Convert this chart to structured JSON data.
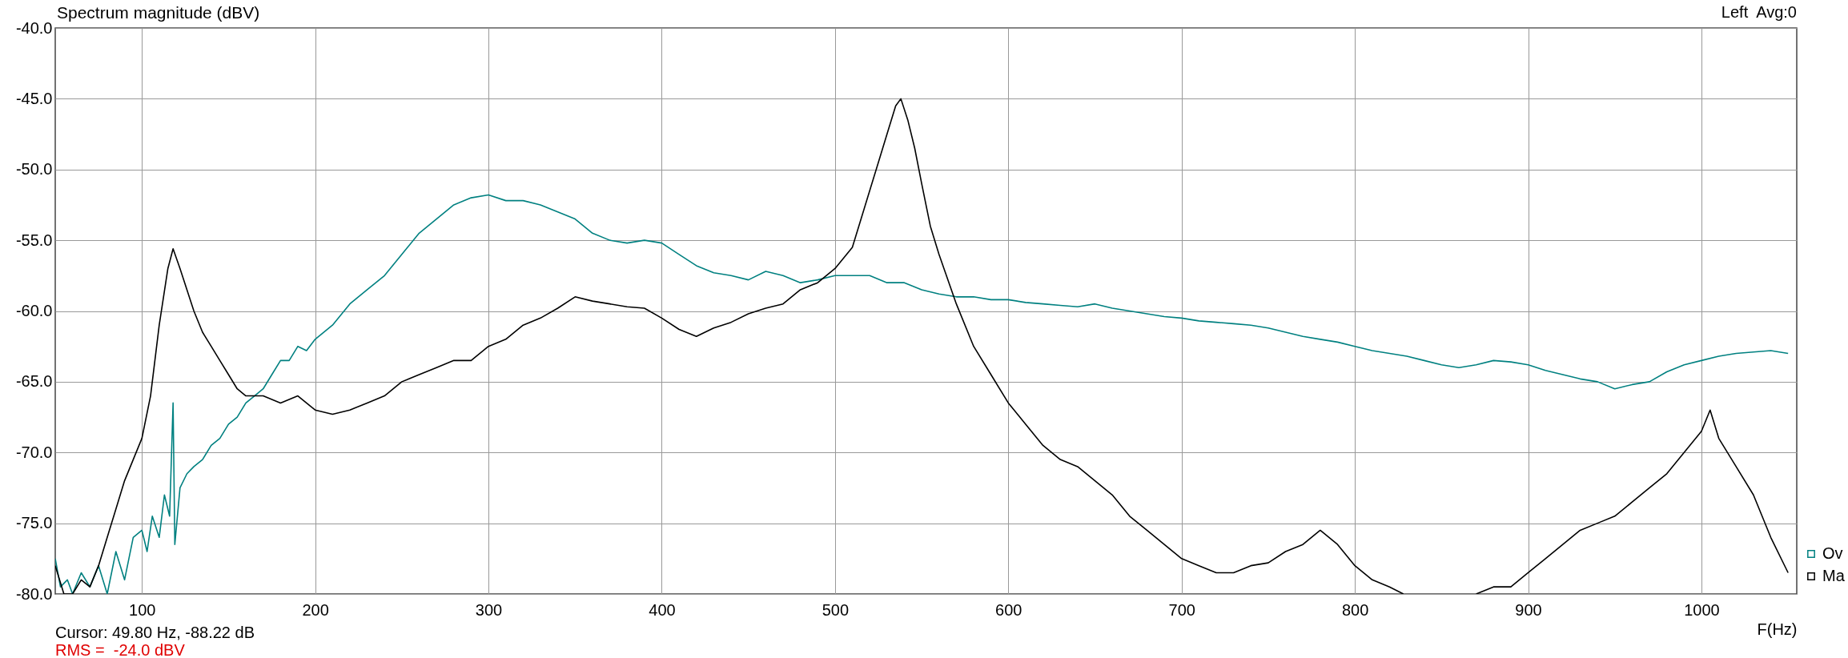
{
  "chart_data": {
    "type": "line",
    "title": "Spectrum magnitude (dBV)",
    "xlabel": "F(Hz)",
    "annotations": [
      "Left  Avg:0",
      "Cursor: 49.80 Hz, -88.22 dB",
      "RMS =  -24.0 dBV"
    ],
    "xlim": [
      50,
      1055
    ],
    "xticks": [
      100,
      200,
      300,
      400,
      500,
      600,
      700,
      800,
      900,
      1000
    ],
    "ylim": [
      -80,
      -40
    ],
    "yticks": [
      {
        "value": -80,
        "label": "-80.0"
      },
      {
        "value": -75,
        "label": "-75.0"
      },
      {
        "value": -70,
        "label": "-70.0"
      },
      {
        "value": -65,
        "label": "-65.0"
      },
      {
        "value": -60,
        "label": "-60.0"
      },
      {
        "value": -55,
        "label": "-55.0"
      },
      {
        "value": -50,
        "label": "-50.0"
      },
      {
        "value": -45,
        "label": "-45.0"
      },
      {
        "value": -40,
        "label": "-40.0"
      }
    ],
    "grid": true,
    "legend": "bottom right",
    "line_style": "solid",
    "marker": "none",
    "series": [
      {
        "name": "Ov",
        "color": "#008080",
        "x": [
          50,
          53,
          57,
          60,
          65,
          70,
          75,
          80,
          85,
          90,
          95,
          100,
          103,
          106,
          110,
          113,
          116,
          118,
          119,
          122,
          126,
          130,
          135,
          140,
          145,
          150,
          155,
          160,
          165,
          170,
          175,
          180,
          185,
          190,
          195,
          200,
          210,
          220,
          230,
          240,
          250,
          260,
          270,
          280,
          290,
          300,
          310,
          320,
          330,
          340,
          350,
          360,
          370,
          380,
          390,
          400,
          410,
          420,
          430,
          440,
          450,
          460,
          470,
          480,
          490,
          500,
          510,
          520,
          530,
          540,
          550,
          560,
          570,
          580,
          590,
          600,
          610,
          620,
          630,
          640,
          650,
          660,
          670,
          680,
          690,
          700,
          710,
          720,
          730,
          740,
          750,
          760,
          770,
          780,
          790,
          800,
          810,
          820,
          830,
          840,
          850,
          860,
          870,
          880,
          890,
          900,
          910,
          920,
          930,
          940,
          950,
          960,
          970,
          980,
          990,
          1000,
          1010,
          1020,
          1030,
          1040,
          1050
        ],
        "values": [
          -77.5,
          -79.5,
          -79,
          -80,
          -78.5,
          -79.5,
          -78,
          -80,
          -77,
          -79,
          -76,
          -75.5,
          -77,
          -74.5,
          -76,
          -73,
          -74.5,
          -66.5,
          -76.5,
          -72.5,
          -71.5,
          -71,
          -70.5,
          -69.5,
          -69,
          -68,
          -67.5,
          -66.5,
          -66,
          -65.5,
          -64.5,
          -63.5,
          -63.5,
          -62.5,
          -62.8,
          -62,
          -61,
          -59.5,
          -58.5,
          -57.5,
          -56,
          -54.5,
          -53.5,
          -52.5,
          -52,
          -51.8,
          -52.2,
          -52.2,
          -52.5,
          -53,
          -53.5,
          -54.5,
          -55,
          -55.2,
          -55,
          -55.2,
          -56,
          -56.8,
          -57.3,
          -57.5,
          -57.8,
          -57.2,
          -57.5,
          -58,
          -57.8,
          -57.5,
          -57.5,
          -57.5,
          -58,
          -58,
          -58.5,
          -58.8,
          -59,
          -59,
          -59.2,
          -59.2,
          -59.4,
          -59.5,
          -59.6,
          -59.7,
          -59.5,
          -59.8,
          -60,
          -60.2,
          -60.4,
          -60.5,
          -60.7,
          -60.8,
          -60.9,
          -61,
          -61.2,
          -61.5,
          -61.8,
          -62,
          -62.2,
          -62.5,
          -62.8,
          -63,
          -63.2,
          -63.5,
          -63.8,
          -64,
          -63.8,
          -63.5,
          -63.6,
          -63.8,
          -64.2,
          -64.5,
          -64.8,
          -65,
          -65.5,
          -65.2,
          -65,
          -64.3,
          -63.8,
          -63.5,
          -63.2,
          -63,
          -62.9,
          -62.8,
          -63
        ]
      },
      {
        "name": "Ma",
        "color": "#000000",
        "x": [
          50,
          55,
          60,
          65,
          70,
          75,
          80,
          85,
          90,
          95,
          100,
          105,
          110,
          115,
          118,
          122,
          126,
          130,
          135,
          140,
          145,
          150,
          155,
          160,
          170,
          180,
          190,
          200,
          210,
          220,
          230,
          240,
          250,
          260,
          270,
          280,
          290,
          300,
          310,
          320,
          330,
          340,
          350,
          360,
          370,
          380,
          390,
          400,
          410,
          420,
          430,
          440,
          450,
          460,
          470,
          480,
          490,
          500,
          510,
          520,
          525,
          530,
          535,
          538,
          542,
          546,
          550,
          555,
          560,
          570,
          580,
          590,
          600,
          610,
          620,
          630,
          640,
          650,
          660,
          670,
          680,
          690,
          700,
          710,
          720,
          730,
          740,
          750,
          760,
          770,
          780,
          790,
          800,
          810,
          820,
          828,
          840,
          860,
          870,
          880,
          890,
          900,
          910,
          920,
          930,
          940,
          950,
          960,
          970,
          980,
          990,
          1000,
          1005,
          1010,
          1020,
          1030,
          1040,
          1050
        ],
        "values": [
          -78,
          -80,
          -80,
          -79,
          -79.5,
          -78,
          -76,
          -74,
          -72,
          -70.5,
          -69,
          -66,
          -61,
          -57,
          -55.6,
          -57,
          -58.5,
          -60,
          -61.5,
          -62.5,
          -63.5,
          -64.5,
          -65.5,
          -66,
          -66,
          -66.5,
          -66,
          -67,
          -67.3,
          -67,
          -66.5,
          -66,
          -65,
          -64.5,
          -64,
          -63.5,
          -63.5,
          -62.5,
          -62,
          -61,
          -60.5,
          -59.8,
          -59,
          -59.3,
          -59.5,
          -59.7,
          -59.8,
          -60.5,
          -61.3,
          -61.8,
          -61.2,
          -60.8,
          -60.2,
          -59.8,
          -59.5,
          -58.5,
          -58,
          -57,
          -55.5,
          -51.5,
          -49.5,
          -47.5,
          -45.5,
          -45,
          -46.5,
          -48.5,
          -51,
          -54,
          -56,
          -59.5,
          -62.5,
          -64.5,
          -66.5,
          -68,
          -69.5,
          -70.5,
          -71,
          -72,
          -73,
          -74.5,
          -75.5,
          -76.5,
          -77.5,
          -78,
          -78.5,
          -78.5,
          -78,
          -77.8,
          -77,
          -76.5,
          -75.5,
          -76.5,
          -78,
          -79,
          -79.5,
          -80,
          null,
          null,
          -80,
          -79.5,
          -79.5,
          -78.5,
          -77.5,
          -76.5,
          -75.5,
          -75,
          -74.5,
          -73.5,
          -72.5,
          -71.5,
          -70,
          -68.5,
          -67,
          -69,
          -71,
          -73,
          -76,
          -78.5
        ]
      }
    ]
  }
}
